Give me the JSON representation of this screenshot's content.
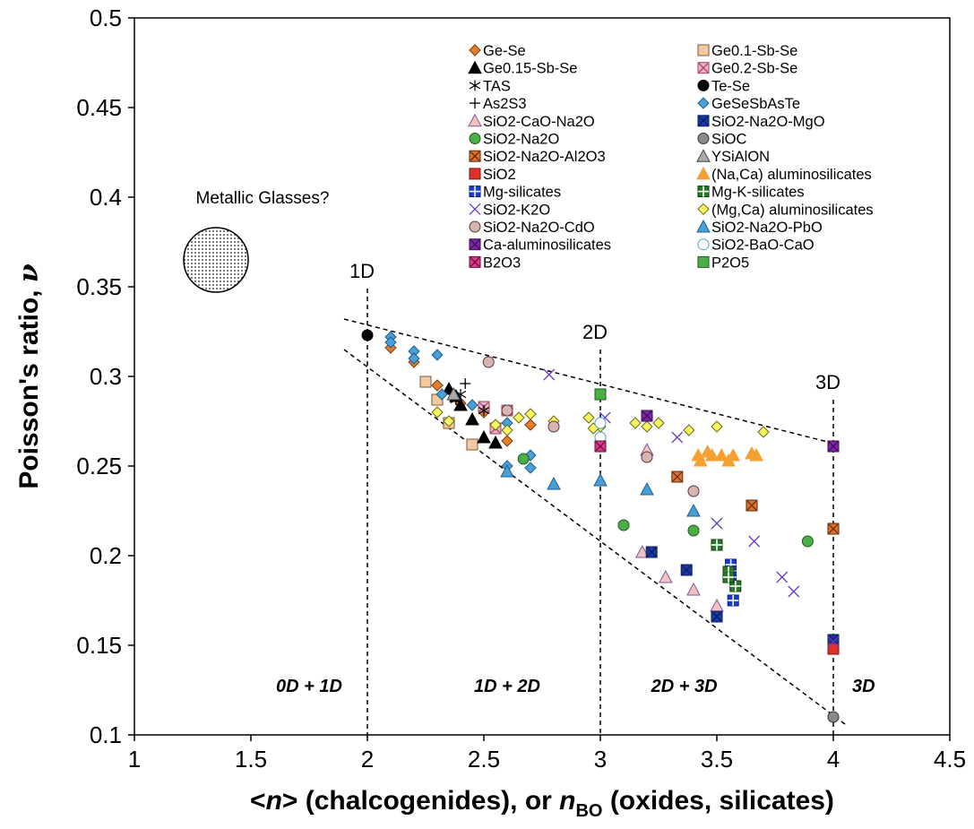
{
  "chart_data": {
    "type": "scatter",
    "title": "",
    "xlabel": "<n> (chalcogenides), or nBO (oxides, silicates)",
    "xlabel_parts": {
      "p1": "<",
      "p2": "n",
      "p3": "> (chalcogenides), or ",
      "p4": "n",
      "p5": "BO",
      "p6": " (oxides, silicates)"
    },
    "ylabel": "Poisson's ratio, ν",
    "ylabel_parts": {
      "p1": "Poisson's ratio, ",
      "p2": "ν"
    },
    "xlim": [
      1,
      4.5
    ],
    "ylim": [
      0.1,
      0.5
    ],
    "xticks": [
      1,
      1.5,
      2,
      2.5,
      3,
      3.5,
      4,
      4.5
    ],
    "xtick_labels": [
      "1",
      "1.5",
      "2",
      "2.5",
      "3",
      "3.5",
      "4",
      "4.5"
    ],
    "yticks": [
      0.1,
      0.15,
      0.2,
      0.25,
      0.3,
      0.35,
      0.4,
      0.45,
      0.5
    ],
    "ytick_labels": [
      "0.1",
      "0.15",
      "0.2",
      "0.25",
      "0.3",
      "0.35",
      "0.4",
      "0.45",
      "0.5"
    ],
    "grid": false,
    "legend_position": "top-right",
    "vertical_lines": [
      {
        "x": 2,
        "label": "1D"
      },
      {
        "x": 3,
        "label": "2D"
      },
      {
        "x": 4,
        "label": "3D"
      }
    ],
    "bound_lines": [
      {
        "x1": 1.9,
        "y1": 0.332,
        "x2": 4.02,
        "y2": 0.262
      },
      {
        "x1": 1.9,
        "y1": 0.315,
        "x2": 4.05,
        "y2": 0.106
      }
    ],
    "region_labels": [
      {
        "text": "0D + 1D",
        "x": 1.75,
        "y": 0.124
      },
      {
        "text": "1D + 2D",
        "x": 2.6,
        "y": 0.124
      },
      {
        "text": "2D + 3D",
        "x": 3.36,
        "y": 0.124
      },
      {
        "text": "3D",
        "x": 4.13,
        "y": 0.124
      }
    ],
    "annotation": {
      "text": "Metallic Glasses?",
      "x": 1.55,
      "y": 0.4,
      "circle_center": [
        1.35,
        0.365
      ]
    },
    "series": [
      {
        "name": "Ge-Se",
        "marker": "diamond",
        "fill": "#e87d2c",
        "stroke": "#7a3a10",
        "points": [
          [
            2.1,
            0.316
          ],
          [
            2.2,
            0.308
          ],
          [
            2.3,
            0.295
          ],
          [
            2.4,
            0.285
          ],
          [
            2.5,
            0.28
          ],
          [
            2.6,
            0.264
          ],
          [
            2.7,
            0.273
          ]
        ]
      },
      {
        "name": "Ge0.1-Sb-Se",
        "marker": "square",
        "fill": "#f5c9a0",
        "stroke": "#7a5a3a",
        "points": [
          [
            2.25,
            0.297
          ],
          [
            2.3,
            0.287
          ],
          [
            2.35,
            0.274
          ],
          [
            2.45,
            0.262
          ]
        ]
      },
      {
        "name": "Ge0.15-Sb-Se",
        "marker": "triangle",
        "fill": "#000000",
        "stroke": "#000000",
        "points": [
          [
            2.35,
            0.293
          ],
          [
            2.4,
            0.284
          ],
          [
            2.45,
            0.276
          ],
          [
            2.5,
            0.266
          ],
          [
            2.55,
            0.263
          ],
          [
            2.38,
            0.289
          ]
        ]
      },
      {
        "name": "Ge0.2-Sb-Se",
        "marker": "squarex",
        "fill": "#e8b4c4",
        "stroke": "#a04060",
        "points": [
          [
            2.5,
            0.283
          ],
          [
            2.6,
            0.281
          ],
          [
            2.55,
            0.271
          ]
        ]
      },
      {
        "name": "TAS",
        "marker": "asterisk",
        "fill": "none",
        "stroke": "#000000",
        "points": [
          [
            2.4,
            0.29
          ],
          [
            2.5,
            0.281
          ],
          [
            2.38,
            0.287
          ]
        ]
      },
      {
        "name": "Te-Se",
        "marker": "circle",
        "fill": "#000000",
        "stroke": "#000000",
        "points": [
          [
            2.0,
            0.323
          ]
        ]
      },
      {
        "name": "As2S3",
        "marker": "plus",
        "fill": "none",
        "stroke": "#000000",
        "points": [
          [
            2.42,
            0.296
          ]
        ]
      },
      {
        "name": "GeSeSbAsTe",
        "marker": "diamond",
        "fill": "#4a9fd8",
        "stroke": "#1f5f8a",
        "points": [
          [
            2.1,
            0.322
          ],
          [
            2.1,
            0.319
          ],
          [
            2.2,
            0.314
          ],
          [
            2.2,
            0.31
          ],
          [
            2.3,
            0.312
          ],
          [
            2.32,
            0.29
          ],
          [
            2.45,
            0.284
          ],
          [
            2.6,
            0.25
          ],
          [
            2.7,
            0.249
          ],
          [
            2.7,
            0.256
          ],
          [
            2.6,
            0.274
          ]
        ]
      },
      {
        "name": "SiO2-CaO-Na2O",
        "marker": "triangle",
        "fill": "#f5c0c0",
        "stroke": "#7a5a9a",
        "points": [
          [
            3.18,
            0.202
          ],
          [
            3.28,
            0.188
          ],
          [
            3.4,
            0.181
          ],
          [
            3.5,
            0.172
          ],
          [
            3.2,
            0.259
          ]
        ]
      },
      {
        "name": "SiO2-Na2O-MgO",
        "marker": "squarex",
        "fill": "#1a3aa0",
        "stroke": "#0a1a60",
        "points": [
          [
            3.22,
            0.202
          ],
          [
            3.37,
            0.192
          ],
          [
            3.5,
            0.166
          ],
          [
            4.0,
            0.153
          ]
        ]
      },
      {
        "name": "SiO2-Na2O",
        "marker": "circle",
        "fill": "#4cae48",
        "stroke": "#1f5a1a",
        "points": [
          [
            2.67,
            0.254
          ],
          [
            3.1,
            0.217
          ],
          [
            3.4,
            0.214
          ],
          [
            3.89,
            0.208
          ]
        ]
      },
      {
        "name": "SiOC",
        "marker": "circle",
        "fill": "#8a8a8a",
        "stroke": "#333333",
        "points": [
          [
            4.0,
            0.11
          ]
        ]
      },
      {
        "name": "SiO2-Na2O-Al2O3",
        "marker": "squarex",
        "fill": "#e07030",
        "stroke": "#5a2a0a",
        "points": [
          [
            3.33,
            0.244
          ],
          [
            3.65,
            0.228
          ],
          [
            4.0,
            0.215
          ]
        ]
      },
      {
        "name": "YSiAlON",
        "marker": "triangle",
        "fill": "#aaaaaa",
        "stroke": "#444444",
        "points": [
          [
            2.37,
            0.29
          ]
        ]
      },
      {
        "name": "SiO2",
        "marker": "square",
        "fill": "#e0302a",
        "stroke": "#7a1a1a",
        "points": [
          [
            4.0,
            0.148
          ]
        ]
      },
      {
        "name": "(Na,Ca) aluminosilicates",
        "marker": "triangle",
        "fill": "#f5a030",
        "stroke": "#f5a030",
        "points": [
          [
            3.42,
            0.256
          ],
          [
            3.43,
            0.253
          ],
          [
            3.46,
            0.258
          ],
          [
            3.48,
            0.256
          ],
          [
            3.52,
            0.256
          ],
          [
            3.55,
            0.253
          ],
          [
            3.57,
            0.256
          ],
          [
            3.65,
            0.257
          ],
          [
            3.67,
            0.256
          ]
        ]
      },
      {
        "name": "Mg-silicates",
        "marker": "squareplus",
        "fill": "#1a3ad8",
        "stroke": "#0a1a80",
        "points": [
          [
            3.56,
            0.195
          ],
          [
            3.56,
            0.188
          ],
          [
            3.57,
            0.175
          ]
        ]
      },
      {
        "name": "Mg-K-silicates",
        "marker": "squareplus",
        "fill": "#2a7a2a",
        "stroke": "#0a3a0a",
        "points": [
          [
            3.5,
            0.206
          ],
          [
            3.55,
            0.191
          ],
          [
            3.58,
            0.183
          ],
          [
            3.55,
            0.188
          ]
        ]
      },
      {
        "name": "SiO2-K2O",
        "marker": "x",
        "fill": "none",
        "stroke": "#6a3ac8",
        "points": [
          [
            2.78,
            0.301
          ],
          [
            3.02,
            0.277
          ],
          [
            3.33,
            0.266
          ],
          [
            3.5,
            0.218
          ],
          [
            3.66,
            0.208
          ],
          [
            3.78,
            0.188
          ],
          [
            3.83,
            0.18
          ],
          [
            4.0,
            0.152
          ]
        ]
      },
      {
        "name": "(Mg,Ca) aluminosilicates",
        "marker": "diamond",
        "fill": "#f5f560",
        "stroke": "#6a6a1a",
        "points": [
          [
            2.3,
            0.28
          ],
          [
            2.35,
            0.275
          ],
          [
            2.55,
            0.273
          ],
          [
            2.6,
            0.27
          ],
          [
            2.65,
            0.277
          ],
          [
            2.7,
            0.279
          ],
          [
            2.8,
            0.275
          ],
          [
            2.95,
            0.277
          ],
          [
            3.0,
            0.272
          ],
          [
            3.15,
            0.274
          ],
          [
            3.2,
            0.272
          ],
          [
            3.25,
            0.274
          ],
          [
            3.38,
            0.27
          ],
          [
            3.5,
            0.272
          ],
          [
            3.7,
            0.269
          ],
          [
            2.97,
            0.271
          ]
        ]
      },
      {
        "name": "SiO2-Na2O-CdO",
        "marker": "circle",
        "fill": "#d8b4b0",
        "stroke": "#5a3a3a",
        "points": [
          [
            2.52,
            0.308
          ],
          [
            2.6,
            0.281
          ],
          [
            2.8,
            0.272
          ],
          [
            3.2,
            0.255
          ],
          [
            3.4,
            0.236
          ]
        ]
      },
      {
        "name": "SiO2-Na2O-PbO",
        "marker": "triangle",
        "fill": "#4a9fd8",
        "stroke": "#1f5f8a",
        "points": [
          [
            2.6,
            0.247
          ],
          [
            2.8,
            0.24
          ],
          [
            3.0,
            0.242
          ],
          [
            3.2,
            0.237
          ],
          [
            3.4,
            0.225
          ]
        ]
      },
      {
        "name": "Ca-aluminosilicates",
        "marker": "squarex",
        "fill": "#7a2aa0",
        "stroke": "#3a0a5a",
        "points": [
          [
            3.2,
            0.278
          ],
          [
            4.0,
            0.261
          ]
        ]
      },
      {
        "name": "SiO2-BaO-CaO",
        "marker": "circle",
        "fill": "#ffffff",
        "stroke": "#4a9fd8",
        "points": [
          [
            3.0,
            0.274
          ],
          [
            3.0,
            0.266
          ]
        ]
      },
      {
        "name": "B2O3",
        "marker": "squarex",
        "fill": "#d83a8a",
        "stroke": "#6a0a3a",
        "points": [
          [
            3.0,
            0.261
          ]
        ]
      },
      {
        "name": "P2O5",
        "marker": "square",
        "fill": "#4cae48",
        "stroke": "#1f5a1a",
        "points": [
          [
            3.0,
            0.29
          ]
        ]
      }
    ]
  }
}
